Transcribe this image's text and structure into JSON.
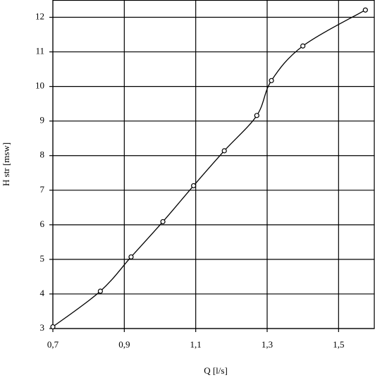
{
  "chart_data": {
    "type": "line",
    "x_label": "Q [l/s]",
    "y_label": "H str [msw]",
    "x": [
      0.7,
      0.833,
      0.919,
      1.008,
      1.094,
      1.18,
      1.271,
      1.312,
      1.4,
      1.575
    ],
    "values": [
      3.05,
      4.08,
      5.07,
      6.09,
      7.13,
      8.14,
      9.16,
      10.17,
      11.17,
      12.21
    ],
    "color": "#000000",
    "xlim": [
      0.7,
      1.6
    ],
    "ylim": [
      3,
      12.5
    ],
    "xticks": [
      {
        "value": 0.7,
        "label": "0,7"
      },
      {
        "value": 0.9,
        "label": "0,9"
      },
      {
        "value": 1.1,
        "label": "1,1"
      },
      {
        "value": 1.3,
        "label": "1,3"
      },
      {
        "value": 1.5,
        "label": "1,5"
      }
    ],
    "yticks": [
      3,
      4,
      5,
      6,
      7,
      8,
      9,
      10,
      11,
      12
    ],
    "grid": true
  }
}
